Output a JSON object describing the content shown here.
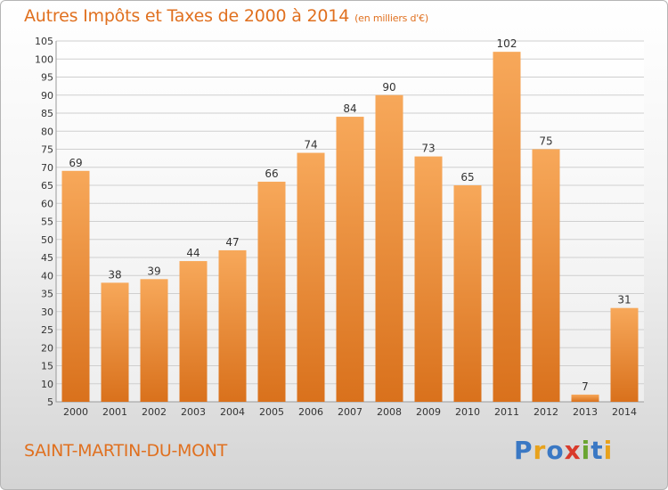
{
  "header": {
    "title": "Autres Impôts et Taxes de 2000 à 2014",
    "unit": "(en milliers d'€)"
  },
  "footer": {
    "city": "SAINT-MARTIN-DU-MONT",
    "brand_letters": [
      {
        "ch": "P",
        "color": "#3a78c4"
      },
      {
        "ch": "r",
        "color": "#e8a21c"
      },
      {
        "ch": "o",
        "color": "#3a78c4"
      },
      {
        "ch": "x",
        "color": "#d93a2b"
      },
      {
        "ch": "i",
        "color": "#6aa531"
      },
      {
        "ch": "t",
        "color": "#3a78c4"
      },
      {
        "ch": "i",
        "color": "#e8a21c"
      }
    ]
  },
  "colors": {
    "title": "#e0701f",
    "bar_top": "#f7a85a",
    "bar_bottom": "#d9711c",
    "grid": "#cfcfcf"
  },
  "chart_data": {
    "type": "bar",
    "title": "Autres Impôts et Taxes de 2000 à 2014",
    "ylabel": "",
    "xlabel": "",
    "categories": [
      "2000",
      "2001",
      "2002",
      "2003",
      "2004",
      "2005",
      "2006",
      "2007",
      "2008",
      "2009",
      "2010",
      "2011",
      "2012",
      "2013",
      "2014"
    ],
    "values": [
      69,
      38,
      39,
      44,
      47,
      66,
      74,
      84,
      90,
      73,
      65,
      102,
      75,
      7,
      31
    ],
    "ylim": [
      5,
      105
    ],
    "yticks": [
      5,
      10,
      15,
      20,
      25,
      30,
      35,
      40,
      45,
      50,
      55,
      60,
      65,
      70,
      75,
      80,
      85,
      90,
      95,
      100,
      105
    ],
    "grid": true,
    "data_labels": true
  }
}
